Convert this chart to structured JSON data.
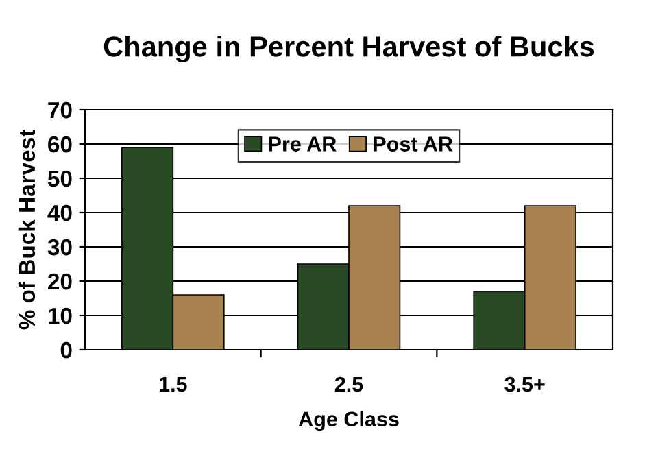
{
  "chart_data": {
    "type": "bar",
    "title": "Change in Percent Harvest of Bucks",
    "xlabel": "Age Class",
    "ylabel": "% of Buck Harvest",
    "categories": [
      "1.5",
      "2.5",
      "3.5+"
    ],
    "series": [
      {
        "name": "Pre AR",
        "color": "#2a4a26",
        "values": [
          59,
          25,
          17
        ]
      },
      {
        "name": "Post AR",
        "color": "#a88350",
        "values": [
          16,
          42,
          42
        ]
      }
    ],
    "ylim": [
      0,
      70
    ],
    "yticks": [
      0,
      10,
      20,
      30,
      40,
      50,
      60,
      70
    ],
    "grid": "y",
    "legend": "top"
  }
}
